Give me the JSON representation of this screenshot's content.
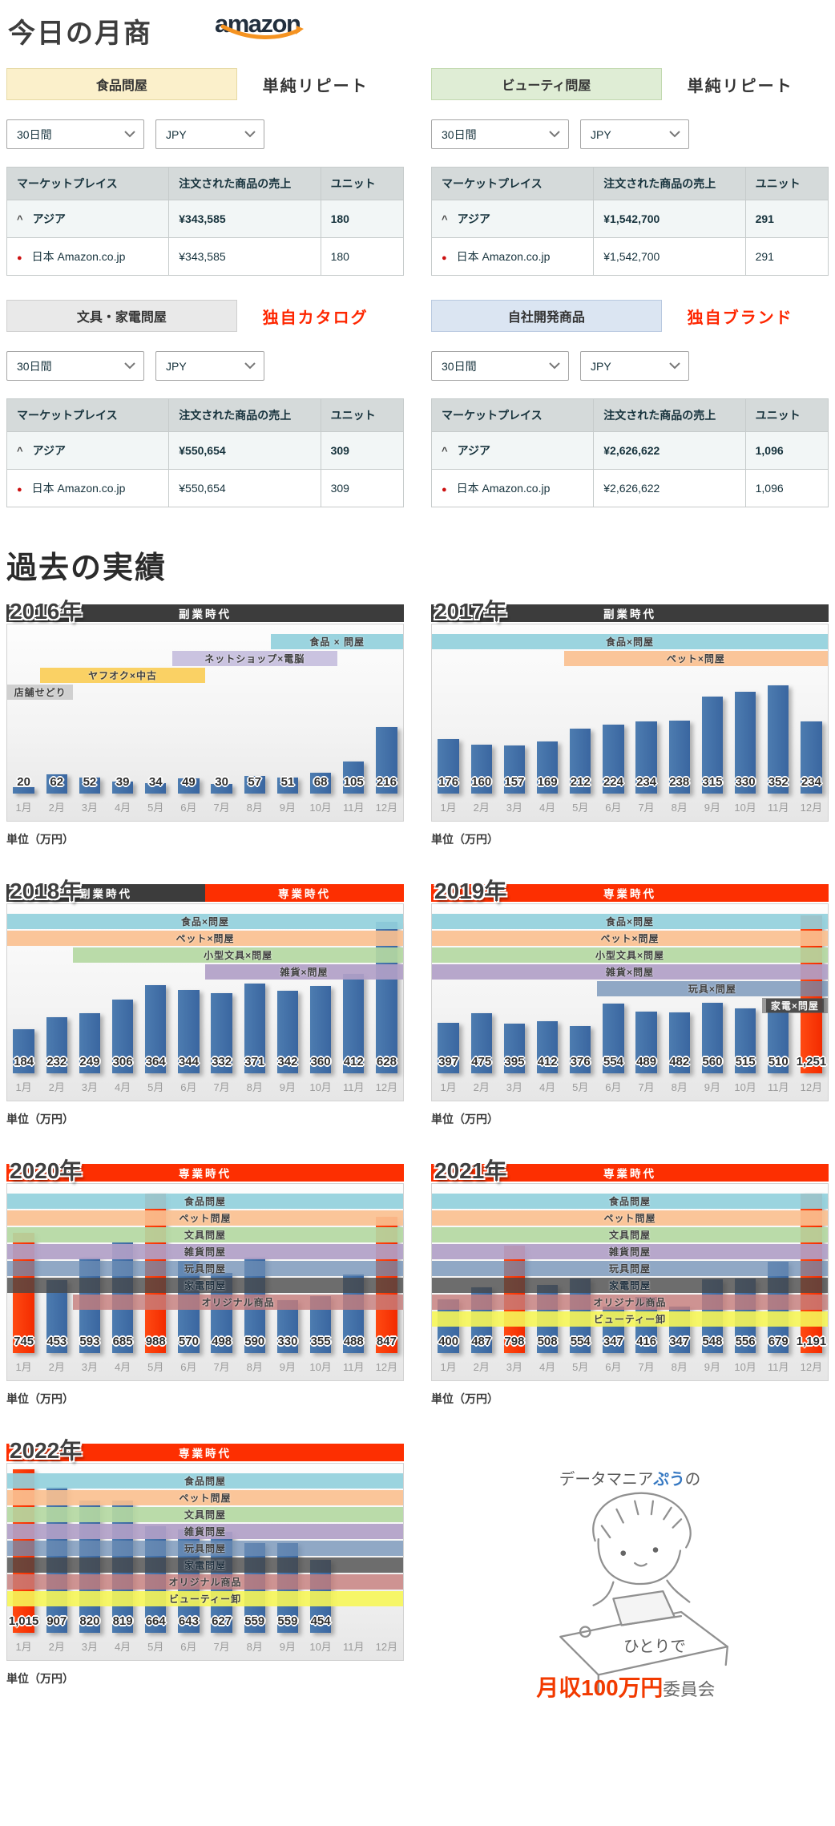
{
  "page": {
    "title": "今日の月商",
    "brand": "amazon"
  },
  "markers": {
    "caret": "^",
    "dot": "●"
  },
  "table_headers": [
    "マーケットプレイス",
    "注文された商品の売上",
    "ユニット"
  ],
  "panels": [
    {
      "category": "食品問屋",
      "box_bg": "#fbf0cb",
      "box_border": "#e6d9a4",
      "tag": "単純リピート",
      "tag_color": "#333333",
      "period": "30日間",
      "currency": "JPY",
      "rows": [
        {
          "name": "アジア",
          "sales": "¥343,585",
          "units": "180"
        },
        {
          "name": "日本 Amazon.co.jp",
          "sales": "¥343,585",
          "units": "180"
        }
      ]
    },
    {
      "category": "ビューティ問屋",
      "box_bg": "#dfedd5",
      "box_border": "#c2d9b0",
      "tag": "単純リピート",
      "tag_color": "#333333",
      "period": "30日間",
      "currency": "JPY",
      "rows": [
        {
          "name": "アジア",
          "sales": "¥1,542,700",
          "units": "291"
        },
        {
          "name": "日本 Amazon.co.jp",
          "sales": "¥1,542,700",
          "units": "291"
        }
      ]
    },
    {
      "category": "文具・家電問屋",
      "box_bg": "#e9e9e9",
      "box_border": "#cfcfcf",
      "tag": "独自カタログ",
      "tag_color": "#fe2600",
      "period": "30日間",
      "currency": "JPY",
      "rows": [
        {
          "name": "アジア",
          "sales": "¥550,654",
          "units": "309"
        },
        {
          "name": "日本 Amazon.co.jp",
          "sales": "¥550,654",
          "units": "309"
        }
      ]
    },
    {
      "category": "自社開発商品",
      "box_bg": "#dbe5f2",
      "box_border": "#b9c9e0",
      "tag": "独自ブランド",
      "tag_color": "#fe2600",
      "period": "30日間",
      "currency": "JPY",
      "rows": [
        {
          "name": "アジア",
          "sales": "¥2,626,622",
          "units": "1,096"
        },
        {
          "name": "日本 Amazon.co.jp",
          "sales": "¥2,626,622",
          "units": "1,096"
        }
      ]
    }
  ],
  "history": {
    "title": "過去の実績",
    "unit_label": "単位（万円）",
    "months": [
      "1月",
      "2月",
      "3月",
      "4月",
      "5月",
      "6月",
      "7月",
      "8月",
      "9月",
      "10月",
      "11月",
      "12月"
    ]
  },
  "chart_data": [
    {
      "type": "bar",
      "title": "2016年",
      "categories": [
        "1月",
        "2月",
        "3月",
        "4月",
        "5月",
        "6月",
        "7月",
        "8月",
        "9月",
        "10月",
        "11月",
        "12月"
      ],
      "values": [
        20,
        62,
        52,
        39,
        34,
        49,
        30,
        57,
        51,
        68,
        105,
        216
      ],
      "ylim": [
        0,
        550
      ],
      "red_months": [],
      "era": [
        {
          "label": "副業時代",
          "color": "#3c3c3c",
          "from": 1,
          "to": 12
        }
      ],
      "bands": [
        {
          "label": "食品 × 問屋",
          "from": 9,
          "to": 12,
          "bg": "rgba(146,208,220,0.92)"
        },
        {
          "label": "ネットショップ×電脳",
          "from": 6,
          "to": 10,
          "bg": "rgba(197,190,221,0.92)"
        },
        {
          "label": "ヤフオク×中古",
          "from": 2,
          "to": 6,
          "bg": "rgba(250,207,92,0.95)"
        },
        {
          "label": "店舗せどり",
          "from": 1,
          "to": 2,
          "bg": "rgba(205,205,205,0.95)"
        }
      ]
    },
    {
      "type": "bar",
      "title": "2017年",
      "categories": [
        "1月",
        "2月",
        "3月",
        "4月",
        "5月",
        "6月",
        "7月",
        "8月",
        "9月",
        "10月",
        "11月",
        "12月"
      ],
      "values": [
        176,
        160,
        157,
        169,
        212,
        224,
        234,
        238,
        315,
        330,
        352,
        234
      ],
      "ylim": [
        0,
        550
      ],
      "red_months": [],
      "era": [
        {
          "label": "副業時代",
          "color": "#3c3c3c",
          "from": 1,
          "to": 12
        }
      ],
      "bands": [
        {
          "label": "食品×問屋",
          "from": 1,
          "to": 12,
          "bg": "rgba(146,208,220,0.92)"
        },
        {
          "label": "ペット×問屋",
          "from": 5,
          "to": 12,
          "bg": "rgba(250,192,144,0.92)"
        }
      ]
    },
    {
      "type": "bar",
      "title": "2018年",
      "categories": [
        "1月",
        "2月",
        "3月",
        "4月",
        "5月",
        "6月",
        "7月",
        "8月",
        "9月",
        "10月",
        "11月",
        "12月"
      ],
      "values": [
        184,
        232,
        249,
        306,
        364,
        344,
        332,
        371,
        342,
        360,
        412,
        628
      ],
      "ylim": [
        0,
        700
      ],
      "red_months": [],
      "era": [
        {
          "label": "副業時代",
          "color": "#3c3c3c",
          "from": 1,
          "to": 6
        },
        {
          "label": "専業時代",
          "color": "#fd2f01",
          "from": 7,
          "to": 12
        }
      ],
      "bands": [
        {
          "label": "食品×問屋",
          "from": 1,
          "to": 12,
          "bg": "rgba(146,208,220,0.92)"
        },
        {
          "label": "ペット×問屋",
          "from": 1,
          "to": 12,
          "bg": "rgba(250,192,144,0.92)"
        },
        {
          "label": "小型文具×問屋",
          "from": 3,
          "to": 12,
          "bg": "rgba(180,216,162,0.92)"
        },
        {
          "label": "雑貨×問屋",
          "from": 7,
          "to": 12,
          "bg": "rgba(177,160,199,0.92)"
        }
      ]
    },
    {
      "type": "bar",
      "title": "2019年",
      "categories": [
        "1月",
        "2月",
        "3月",
        "4月",
        "5月",
        "6月",
        "7月",
        "8月",
        "9月",
        "10月",
        "11月",
        "12月"
      ],
      "values": [
        397,
        475,
        395,
        412,
        376,
        554,
        489,
        482,
        560,
        515,
        510,
        1251
      ],
      "ylim": [
        0,
        1340
      ],
      "red_months": [
        12
      ],
      "era": [
        {
          "label": "専業時代",
          "color": "#fd2f01",
          "from": 1,
          "to": 12
        }
      ],
      "bands": [
        {
          "label": "食品×問屋",
          "from": 1,
          "to": 12,
          "bg": "rgba(146,208,220,0.92)"
        },
        {
          "label": "ペット×問屋",
          "from": 1,
          "to": 12,
          "bg": "rgba(250,192,144,0.92)"
        },
        {
          "label": "小型文具×問屋",
          "from": 1,
          "to": 12,
          "bg": "rgba(180,216,162,0.92)"
        },
        {
          "label": "雑貨×問屋",
          "from": 1,
          "to": 12,
          "bg": "rgba(177,160,199,0.92)"
        },
        {
          "label": "玩具×問屋",
          "from": 6,
          "to": 12,
          "bg": "rgba(110,141,180,0.75)"
        },
        {
          "label": "家電×問屋",
          "from": 11,
          "to": 12,
          "bg": "rgba(80,80,80,0.55)",
          "text": "#f5f5f5",
          "chip": "rgba(70,70,70,0.9)"
        }
      ]
    },
    {
      "type": "bar",
      "title": "2020年",
      "categories": [
        "1月",
        "2月",
        "3月",
        "4月",
        "5月",
        "6月",
        "7月",
        "8月",
        "9月",
        "10月",
        "11月",
        "12月"
      ],
      "values": [
        745,
        453,
        593,
        685,
        988,
        570,
        498,
        590,
        330,
        355,
        488,
        847
      ],
      "ylim": [
        0,
        1050
      ],
      "red_months": [
        1,
        5,
        12
      ],
      "era": [
        {
          "label": "専業時代",
          "color": "#fd2f01",
          "from": 1,
          "to": 12
        }
      ],
      "bands": [
        {
          "label": "食品問屋",
          "from": 1,
          "to": 12,
          "bg": "rgba(146,208,220,0.92)"
        },
        {
          "label": "ペット問屋",
          "from": 1,
          "to": 12,
          "bg": "rgba(250,192,144,0.92)"
        },
        {
          "label": "文具問屋",
          "from": 1,
          "to": 12,
          "bg": "rgba(180,216,162,0.92)"
        },
        {
          "label": "雑貨問屋",
          "from": 1,
          "to": 12,
          "bg": "rgba(177,160,199,0.92)"
        },
        {
          "label": "玩具問屋",
          "from": 1,
          "to": 12,
          "bg": "rgba(110,141,180,0.75)"
        },
        {
          "label": "家電問屋",
          "from": 1,
          "to": 12,
          "bg": "rgba(70,70,70,0.78)",
          "text": "#20303e"
        },
        {
          "label": "オリジナル商品",
          "from": 3,
          "to": 12,
          "bg": "rgba(198,126,124,0.82)"
        }
      ]
    },
    {
      "type": "bar",
      "title": "2021年",
      "categories": [
        "1月",
        "2月",
        "3月",
        "4月",
        "5月",
        "6月",
        "7月",
        "8月",
        "9月",
        "10月",
        "11月",
        "12月"
      ],
      "values": [
        400,
        487,
        798,
        508,
        554,
        347,
        416,
        347,
        548,
        556,
        679,
        1191
      ],
      "ylim": [
        0,
        1260
      ],
      "red_months": [
        3,
        12
      ],
      "era": [
        {
          "label": "専業時代",
          "color": "#fd2f01",
          "from": 1,
          "to": 12
        }
      ],
      "bands": [
        {
          "label": "食品問屋",
          "from": 1,
          "to": 12,
          "bg": "rgba(146,208,220,0.92)"
        },
        {
          "label": "ペット問屋",
          "from": 1,
          "to": 12,
          "bg": "rgba(250,192,144,0.92)"
        },
        {
          "label": "文具問屋",
          "from": 1,
          "to": 12,
          "bg": "rgba(180,216,162,0.92)"
        },
        {
          "label": "雑貨問屋",
          "from": 1,
          "to": 12,
          "bg": "rgba(177,160,199,0.92)"
        },
        {
          "label": "玩具問屋",
          "from": 1,
          "to": 12,
          "bg": "rgba(110,141,180,0.75)"
        },
        {
          "label": "家電問屋",
          "from": 1,
          "to": 12,
          "bg": "rgba(70,70,70,0.78)",
          "text": "#20303e"
        },
        {
          "label": "オリジナル商品",
          "from": 1,
          "to": 12,
          "bg": "rgba(198,126,124,0.82)"
        },
        {
          "label": "ビューティー卸",
          "from": 1,
          "to": 12,
          "bg": "rgba(246,246,88,0.9)"
        }
      ]
    },
    {
      "type": "bar",
      "title": "2022年",
      "categories": [
        "1月",
        "2月",
        "3月",
        "4月",
        "5月",
        "6月",
        "7月",
        "8月",
        "9月",
        "10月",
        "11月",
        "12月"
      ],
      "values": [
        1015,
        907,
        820,
        819,
        664,
        643,
        627,
        559,
        559,
        454,
        null,
        null
      ],
      "ylim": [
        0,
        1050
      ],
      "red_months": [
        1
      ],
      "era": [
        {
          "label": "専業時代",
          "color": "#fd2f01",
          "from": 1,
          "to": 12
        }
      ],
      "bands": [
        {
          "label": "食品問屋",
          "from": 1,
          "to": 12,
          "bg": "rgba(146,208,220,0.92)"
        },
        {
          "label": "ペット問屋",
          "from": 1,
          "to": 12,
          "bg": "rgba(250,192,144,0.92)"
        },
        {
          "label": "文具問屋",
          "from": 1,
          "to": 12,
          "bg": "rgba(180,216,162,0.92)"
        },
        {
          "label": "雑貨問屋",
          "from": 1,
          "to": 12,
          "bg": "rgba(177,160,199,0.92)"
        },
        {
          "label": "玩具問屋",
          "from": 1,
          "to": 12,
          "bg": "rgba(110,141,180,0.75)"
        },
        {
          "label": "家電問屋",
          "from": 1,
          "to": 12,
          "bg": "rgba(70,70,70,0.78)",
          "text": "#20303e"
        },
        {
          "label": "オリジナル商品",
          "from": 1,
          "to": 12,
          "bg": "rgba(198,126,124,0.82)"
        },
        {
          "label": "ビューティー卸",
          "from": 1,
          "to": 12,
          "bg": "rgba(246,246,88,0.9)"
        }
      ]
    }
  ],
  "illustration": {
    "line1_pre": "データマニア",
    "line1_name": "ぷう",
    "line1_post": "の",
    "line1_name_color": "#3779c2",
    "line2": "ひとりで",
    "line3_red": "月収100万円",
    "line3_red_color": "#f23a00",
    "line3_gray": "委員会"
  }
}
